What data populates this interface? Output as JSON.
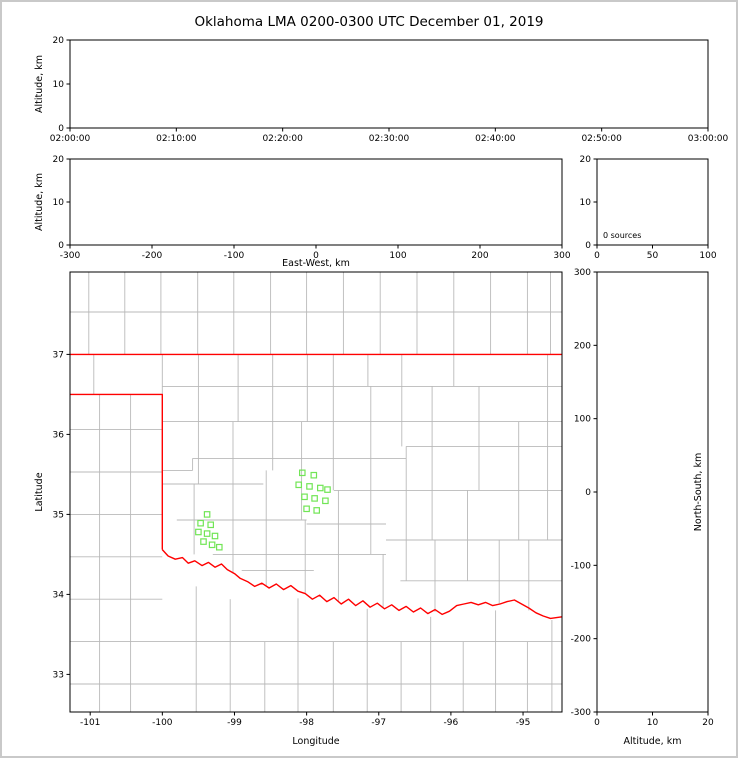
{
  "title": "Oklahoma LMA 0200-0300 UTC December 01, 2019",
  "colors": {
    "state_border": "#ff0000",
    "county_line": "#b9b9b9",
    "station": "#71e555",
    "axis": "#000000",
    "frame": "#c9c9c9",
    "background": "#ffffff"
  },
  "chart_data": [
    {
      "id": "time_height",
      "name": "altitude-vs-time-panel",
      "type": "scatter",
      "xlabel": "",
      "ylabel": "Altitude, km",
      "x_tick_labels": [
        "02:00:00",
        "02:10:00",
        "02:20:00",
        "02:30:00",
        "02:40:00",
        "02:50:00",
        "03:00:00"
      ],
      "ylim": [
        0,
        20
      ],
      "yticks": [
        0,
        10,
        20
      ],
      "points": []
    },
    {
      "id": "ew_height",
      "name": "altitude-vs-east-west-panel",
      "type": "scatter",
      "xlabel": "East-West, km",
      "ylabel": "Altitude, km",
      "xlim": [
        -300,
        300
      ],
      "xticks": [
        -300,
        -200,
        -100,
        0,
        100,
        200,
        300
      ],
      "ylim": [
        0,
        20
      ],
      "yticks": [
        0,
        10,
        20
      ],
      "points": []
    },
    {
      "id": "alt_stats",
      "name": "altitude-histogram-panel",
      "type": "line",
      "annotation": "0 sources",
      "xlim": [
        0,
        100
      ],
      "xticks": [
        0,
        50,
        100
      ],
      "ylim": [
        0,
        20
      ],
      "yticks": [
        0,
        10,
        20
      ],
      "points": []
    },
    {
      "id": "plan_view",
      "name": "plan-view-map-panel",
      "type": "scatter",
      "xlabel": "Longitude",
      "ylabel": "Latitude",
      "xlim": [
        -101.28,
        -94.46
      ],
      "xticks": [
        -101,
        -100,
        -99,
        -98,
        -97,
        -96,
        -95
      ],
      "ylim": [
        32.53,
        38.03
      ],
      "yticks": [
        33,
        34,
        35,
        36,
        37
      ],
      "points": [],
      "stations": [
        [
          -99.38,
          35.0
        ],
        [
          -99.47,
          34.89
        ],
        [
          -99.33,
          34.87
        ],
        [
          -99.5,
          34.78
        ],
        [
          -99.38,
          34.76
        ],
        [
          -99.27,
          34.73
        ],
        [
          -99.43,
          34.66
        ],
        [
          -99.31,
          34.62
        ],
        [
          -99.21,
          34.59
        ],
        [
          -98.06,
          35.52
        ],
        [
          -97.9,
          35.49
        ],
        [
          -98.11,
          35.37
        ],
        [
          -97.96,
          35.35
        ],
        [
          -97.81,
          35.33
        ],
        [
          -97.71,
          35.31
        ],
        [
          -98.03,
          35.22
        ],
        [
          -97.89,
          35.2
        ],
        [
          -97.74,
          35.17
        ],
        [
          -98.0,
          35.07
        ],
        [
          -97.86,
          35.05
        ]
      ],
      "state_border": [
        [
          [
            -101.28,
            37.0
          ],
          [
            -94.46,
            37.0
          ]
        ],
        [
          [
            -101.28,
            36.5
          ],
          [
            -100.0,
            36.5
          ],
          [
            -100.0,
            34.56
          ]
        ],
        [
          [
            -100.0,
            34.56
          ],
          [
            -99.92,
            34.48
          ],
          [
            -99.82,
            34.44
          ],
          [
            -99.72,
            34.46
          ],
          [
            -99.64,
            34.39
          ],
          [
            -99.55,
            34.42
          ],
          [
            -99.45,
            34.36
          ],
          [
            -99.36,
            34.4
          ],
          [
            -99.27,
            34.34
          ],
          [
            -99.18,
            34.38
          ],
          [
            -99.1,
            34.31
          ],
          [
            -99.0,
            34.26
          ],
          [
            -98.92,
            34.2
          ],
          [
            -98.82,
            34.16
          ],
          [
            -98.72,
            34.1
          ],
          [
            -98.62,
            34.14
          ],
          [
            -98.52,
            34.08
          ],
          [
            -98.42,
            34.13
          ],
          [
            -98.32,
            34.06
          ],
          [
            -98.22,
            34.11
          ],
          [
            -98.12,
            34.04
          ],
          [
            -98.02,
            34.01
          ],
          [
            -97.92,
            33.94
          ],
          [
            -97.82,
            33.99
          ],
          [
            -97.72,
            33.91
          ],
          [
            -97.62,
            33.96
          ],
          [
            -97.52,
            33.88
          ],
          [
            -97.42,
            33.94
          ],
          [
            -97.32,
            33.86
          ],
          [
            -97.22,
            33.92
          ],
          [
            -97.12,
            33.84
          ],
          [
            -97.02,
            33.89
          ],
          [
            -96.92,
            33.82
          ],
          [
            -96.82,
            33.87
          ],
          [
            -96.72,
            33.8
          ],
          [
            -96.62,
            33.85
          ],
          [
            -96.52,
            33.78
          ],
          [
            -96.42,
            33.83
          ],
          [
            -96.32,
            33.76
          ],
          [
            -96.22,
            33.81
          ],
          [
            -96.12,
            33.75
          ],
          [
            -96.02,
            33.79
          ],
          [
            -95.92,
            33.86
          ],
          [
            -95.82,
            33.88
          ],
          [
            -95.72,
            33.9
          ],
          [
            -95.62,
            33.87
          ],
          [
            -95.52,
            33.9
          ],
          [
            -95.42,
            33.86
          ],
          [
            -95.32,
            33.88
          ],
          [
            -95.22,
            33.91
          ],
          [
            -95.12,
            33.93
          ],
          [
            -95.02,
            33.88
          ],
          [
            -94.92,
            33.83
          ],
          [
            -94.82,
            33.77
          ],
          [
            -94.72,
            33.73
          ],
          [
            -94.62,
            33.7
          ],
          [
            -94.46,
            33.72
          ]
        ]
      ],
      "county_lines": [
        [
          [
            -101.02,
            37.0
          ],
          [
            -101.02,
            38.03
          ]
        ],
        [
          [
            -100.52,
            37.0
          ],
          [
            -100.52,
            38.03
          ]
        ],
        [
          [
            -100.02,
            37.0
          ],
          [
            -100.02,
            38.03
          ]
        ],
        [
          [
            -99.51,
            37.0
          ],
          [
            -99.51,
            38.03
          ]
        ],
        [
          [
            -99.01,
            37.0
          ],
          [
            -99.01,
            38.03
          ]
        ],
        [
          [
            -98.5,
            37.0
          ],
          [
            -98.5,
            38.03
          ]
        ],
        [
          [
            -98.0,
            37.0
          ],
          [
            -98.0,
            38.03
          ]
        ],
        [
          [
            -97.49,
            37.0
          ],
          [
            -97.49,
            38.03
          ]
        ],
        [
          [
            -96.98,
            37.0
          ],
          [
            -96.98,
            38.03
          ]
        ],
        [
          [
            -96.47,
            37.0
          ],
          [
            -96.47,
            38.03
          ]
        ],
        [
          [
            -95.96,
            37.0
          ],
          [
            -95.96,
            38.03
          ]
        ],
        [
          [
            -95.45,
            37.0
          ],
          [
            -95.45,
            38.03
          ]
        ],
        [
          [
            -94.94,
            37.0
          ],
          [
            -94.94,
            38.03
          ]
        ],
        [
          [
            -94.62,
            37.0
          ],
          [
            -94.62,
            38.03
          ]
        ],
        [
          [
            -101.28,
            37.53
          ],
          [
            -94.46,
            37.53
          ]
        ],
        [
          [
            -100.44,
            32.53
          ],
          [
            -100.44,
            36.5
          ]
        ],
        [
          [
            -100.87,
            32.53
          ],
          [
            -100.87,
            36.5
          ]
        ],
        [
          [
            -100.95,
            36.5
          ],
          [
            -100.95,
            37.0
          ]
        ],
        [
          [
            -101.28,
            36.06
          ],
          [
            -100.0,
            36.06
          ]
        ],
        [
          [
            -101.28,
            35.53
          ],
          [
            -100.0,
            35.53
          ]
        ],
        [
          [
            -101.28,
            35.0
          ],
          [
            -100.0,
            35.0
          ]
        ],
        [
          [
            -101.28,
            34.47
          ],
          [
            -100.0,
            34.47
          ]
        ],
        [
          [
            -101.28,
            33.94
          ],
          [
            -100.0,
            33.94
          ]
        ],
        [
          [
            -101.28,
            33.41
          ],
          [
            -94.46,
            33.41
          ]
        ],
        [
          [
            -101.28,
            32.88
          ],
          [
            -94.46,
            32.88
          ]
        ],
        [
          [
            -99.53,
            32.53
          ],
          [
            -99.53,
            34.1
          ]
        ],
        [
          [
            -99.06,
            32.53
          ],
          [
            -99.06,
            33.94
          ]
        ],
        [
          [
            -98.58,
            32.53
          ],
          [
            -98.58,
            33.41
          ]
        ],
        [
          [
            -98.12,
            32.53
          ],
          [
            -98.12,
            33.95
          ]
        ],
        [
          [
            -97.63,
            32.53
          ],
          [
            -97.63,
            33.41
          ]
        ],
        [
          [
            -97.16,
            32.53
          ],
          [
            -97.16,
            33.82
          ]
        ],
        [
          [
            -96.69,
            32.53
          ],
          [
            -96.69,
            33.41
          ]
        ],
        [
          [
            -96.28,
            32.53
          ],
          [
            -96.28,
            33.72
          ]
        ],
        [
          [
            -95.83,
            32.53
          ],
          [
            -95.83,
            33.41
          ]
        ],
        [
          [
            -95.38,
            32.53
          ],
          [
            -95.38,
            33.8
          ]
        ],
        [
          [
            -94.94,
            32.53
          ],
          [
            -94.94,
            33.41
          ]
        ],
        [
          [
            -94.6,
            32.53
          ],
          [
            -94.6,
            33.68
          ]
        ],
        [
          [
            -100.0,
            36.5
          ],
          [
            -100.0,
            37.0
          ]
        ],
        [
          [
            -100.0,
            36.6
          ],
          [
            -94.46,
            36.6
          ]
        ],
        [
          [
            -100.0,
            36.16
          ],
          [
            -94.46,
            36.16
          ]
        ],
        [
          [
            -100.0,
            35.55
          ],
          [
            -99.58,
            35.55
          ]
        ],
        [
          [
            -99.58,
            35.55
          ],
          [
            -99.58,
            35.7
          ]
        ],
        [
          [
            -99.58,
            35.7
          ],
          [
            -96.62,
            35.7
          ]
        ],
        [
          [
            -96.62,
            35.7
          ],
          [
            -96.62,
            35.85
          ]
        ],
        [
          [
            -96.62,
            35.85
          ],
          [
            -94.46,
            35.85
          ]
        ],
        [
          [
            -97.62,
            35.3
          ],
          [
            -94.46,
            35.3
          ]
        ],
        [
          [
            -100.0,
            35.38
          ],
          [
            -98.6,
            35.38
          ]
        ],
        [
          [
            -99.8,
            34.93
          ],
          [
            -98.0,
            34.93
          ]
        ],
        [
          [
            -98.0,
            34.88
          ],
          [
            -96.9,
            34.88
          ]
        ],
        [
          [
            -96.9,
            34.68
          ],
          [
            -94.46,
            34.68
          ]
        ],
        [
          [
            -99.3,
            34.5
          ],
          [
            -96.9,
            34.5
          ]
        ],
        [
          [
            -96.7,
            34.17
          ],
          [
            -94.46,
            34.17
          ]
        ],
        [
          [
            -98.9,
            34.3
          ],
          [
            -97.9,
            34.3
          ]
        ],
        [
          [
            -99.56,
            34.5
          ],
          [
            -99.56,
            35.38
          ]
        ],
        [
          [
            -99.5,
            35.38
          ],
          [
            -99.5,
            37.0
          ]
        ],
        [
          [
            -99.02,
            34.26
          ],
          [
            -99.02,
            36.16
          ]
        ],
        [
          [
            -98.95,
            36.16
          ],
          [
            -98.95,
            37.0
          ]
        ],
        [
          [
            -98.56,
            34.1
          ],
          [
            -98.56,
            35.55
          ]
        ],
        [
          [
            -98.47,
            35.55
          ],
          [
            -98.47,
            37.0
          ]
        ],
        [
          [
            -98.02,
            34.01
          ],
          [
            -98.02,
            34.93
          ]
        ],
        [
          [
            -98.07,
            34.93
          ],
          [
            -98.07,
            36.16
          ]
        ],
        [
          [
            -97.99,
            36.16
          ],
          [
            -97.99,
            37.0
          ]
        ],
        [
          [
            -97.56,
            33.9
          ],
          [
            -97.56,
            35.3
          ]
        ],
        [
          [
            -97.63,
            35.3
          ],
          [
            -97.63,
            37.0
          ]
        ],
        [
          [
            -97.11,
            34.5
          ],
          [
            -97.11,
            36.6
          ]
        ],
        [
          [
            -97.15,
            36.6
          ],
          [
            -97.15,
            37.0
          ]
        ],
        [
          [
            -96.94,
            33.84
          ],
          [
            -96.94,
            34.5
          ]
        ],
        [
          [
            -96.62,
            34.17
          ],
          [
            -96.62,
            35.7
          ]
        ],
        [
          [
            -96.68,
            35.85
          ],
          [
            -96.68,
            37.0
          ]
        ],
        [
          [
            -96.22,
            33.78
          ],
          [
            -96.22,
            34.68
          ]
        ],
        [
          [
            -96.26,
            34.68
          ],
          [
            -96.26,
            36.6
          ]
        ],
        [
          [
            -95.96,
            36.6
          ],
          [
            -95.96,
            37.0
          ]
        ],
        [
          [
            -95.77,
            34.17
          ],
          [
            -95.77,
            35.3
          ]
        ],
        [
          [
            -95.61,
            35.3
          ],
          [
            -95.61,
            36.6
          ]
        ],
        [
          [
            -95.33,
            33.88
          ],
          [
            -95.33,
            34.68
          ]
        ],
        [
          [
            -95.06,
            34.68
          ],
          [
            -95.06,
            36.16
          ]
        ],
        [
          [
            -94.92,
            33.8
          ],
          [
            -94.92,
            34.68
          ]
        ],
        [
          [
            -94.66,
            34.68
          ],
          [
            -94.66,
            37.0
          ]
        ]
      ]
    },
    {
      "id": "ns_height",
      "name": "north-south-vs-altitude-panel",
      "type": "scatter",
      "xlabel": "Altitude, km",
      "ylabel": "North-South, km",
      "ylabel_side": "right",
      "xlim": [
        0,
        20
      ],
      "xticks": [
        0,
        10,
        20
      ],
      "ylim": [
        -300,
        300
      ],
      "yticks": [
        300,
        200,
        100,
        0,
        -100,
        -200,
        -300
      ],
      "points": []
    }
  ]
}
